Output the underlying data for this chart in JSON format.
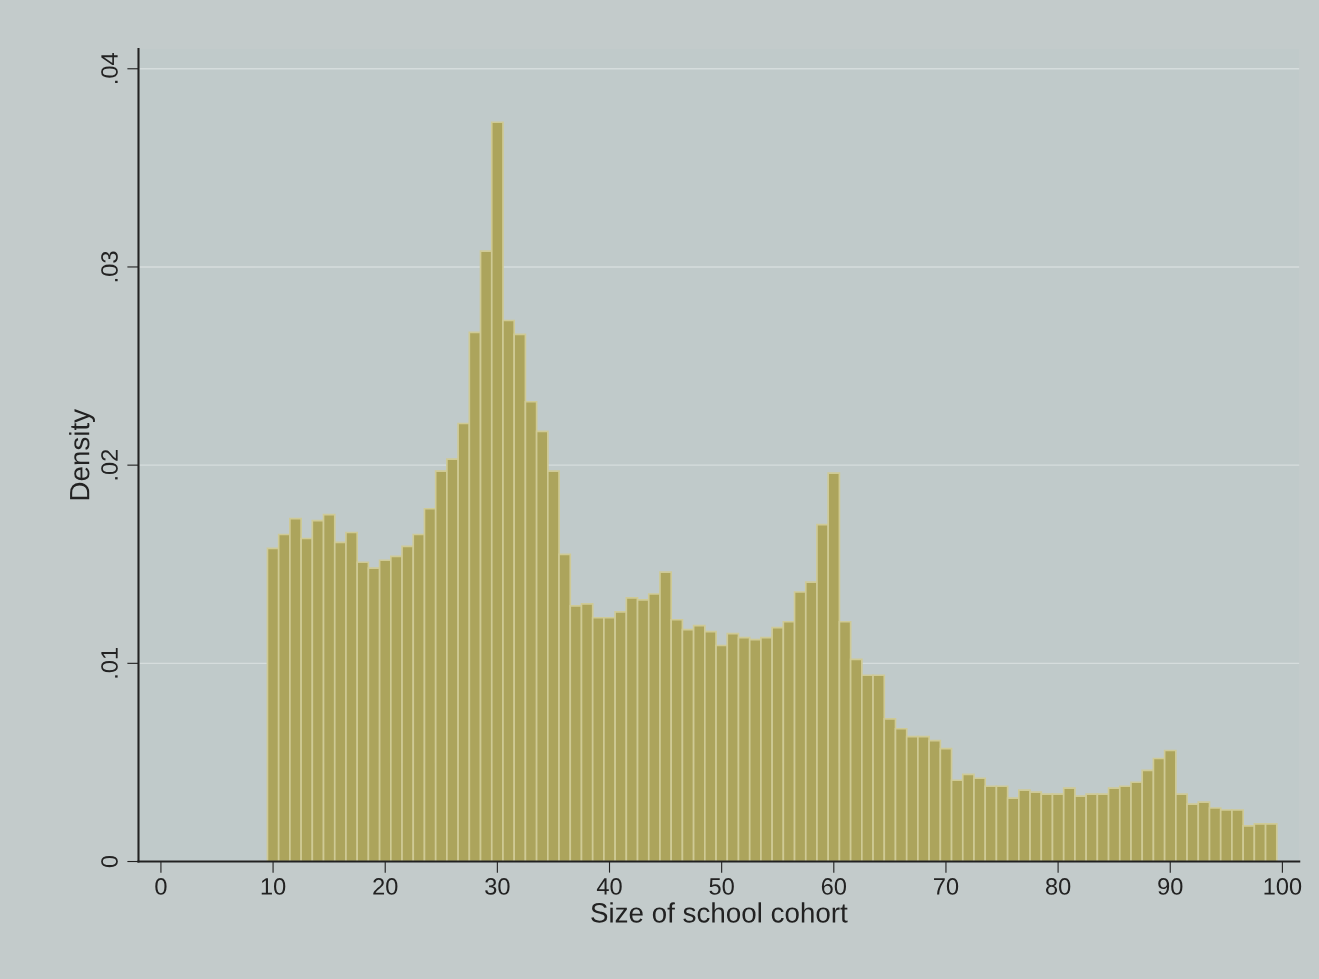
{
  "chart_data": {
    "type": "histogram",
    "xlabel": "Size of school cohort",
    "ylabel": "Density",
    "color": "#aca45c",
    "bins": [
      9.5,
      10.5,
      11.5,
      12.5,
      13.5,
      14.5,
      15.5,
      16.5,
      17.5,
      18.5,
      19.5,
      20.5,
      21.5,
      22.5,
      23.5,
      24.5,
      25.5,
      26.5,
      27.5,
      28.5,
      29.5,
      30.5,
      31.5,
      32.5,
      33.5,
      34.5,
      35.5,
      36.5,
      37.5,
      38.5,
      39.5,
      40.5,
      41.5,
      42.5,
      43.5,
      44.5,
      45.5,
      46.5,
      47.5,
      48.5,
      49.5,
      50.5,
      51.5,
      52.5,
      53.5,
      54.5,
      55.5,
      56.5,
      57.5,
      58.5,
      59.5,
      60.5,
      61.5,
      62.5,
      63.5,
      64.5,
      65.5,
      66.5,
      67.5,
      68.5,
      69.5,
      70.5,
      71.5,
      72.5,
      73.5,
      74.5,
      75.5,
      76.5,
      77.5,
      78.5,
      79.5,
      80.5,
      81.5,
      82.5,
      83.5,
      84.5,
      85.5,
      86.5,
      87.5,
      88.5,
      89.5,
      90.5,
      91.5,
      92.5,
      93.5,
      94.5,
      95.5,
      96.5,
      97.5,
      98.5,
      99.5
    ],
    "values": [
      0.0158,
      0.0165,
      0.0173,
      0.0163,
      0.0172,
      0.0175,
      0.0161,
      0.0166,
      0.0151,
      0.0148,
      0.0152,
      0.0154,
      0.0159,
      0.0165,
      0.0178,
      0.0197,
      0.0203,
      0.0221,
      0.0267,
      0.0308,
      0.0373,
      0.0273,
      0.0266,
      0.0232,
      0.0217,
      0.0197,
      0.0155,
      0.0129,
      0.013,
      0.0123,
      0.0123,
      0.0126,
      0.0133,
      0.0132,
      0.0135,
      0.0146,
      0.0122,
      0.0117,
      0.0119,
      0.0116,
      0.0109,
      0.0115,
      0.0113,
      0.0112,
      0.0113,
      0.0118,
      0.0121,
      0.0136,
      0.0141,
      0.017,
      0.0196,
      0.0121,
      0.0102,
      0.0094,
      0.0094,
      0.0072,
      0.0067,
      0.0063,
      0.0063,
      0.0061,
      0.0057,
      0.0041,
      0.0044,
      0.0042,
      0.0038,
      0.0038,
      0.0032,
      0.0036,
      0.0035,
      0.0034,
      0.0034,
      0.0037,
      0.0033,
      0.0034,
      0.0034,
      0.0037,
      0.0038,
      0.004,
      0.0046,
      0.0052,
      0.0056,
      0.0034,
      0.0029,
      0.003,
      0.0027,
      0.0026,
      0.0026,
      0.0018,
      0.0019,
      0.0019
    ],
    "xlim": [
      -2,
      101.5
    ],
    "ylim": [
      0,
      0.041
    ],
    "xticks": [
      0,
      10,
      20,
      30,
      40,
      50,
      60,
      70,
      80,
      90,
      100
    ],
    "yticks": [
      {
        "value": 0,
        "label": "0"
      },
      {
        "value": 0.01,
        "label": ".01"
      },
      {
        "value": 0.02,
        "label": ".02"
      },
      {
        "value": 0.03,
        "label": ".03"
      },
      {
        "value": 0.04,
        "label": ".04"
      }
    ],
    "grid": "y"
  }
}
